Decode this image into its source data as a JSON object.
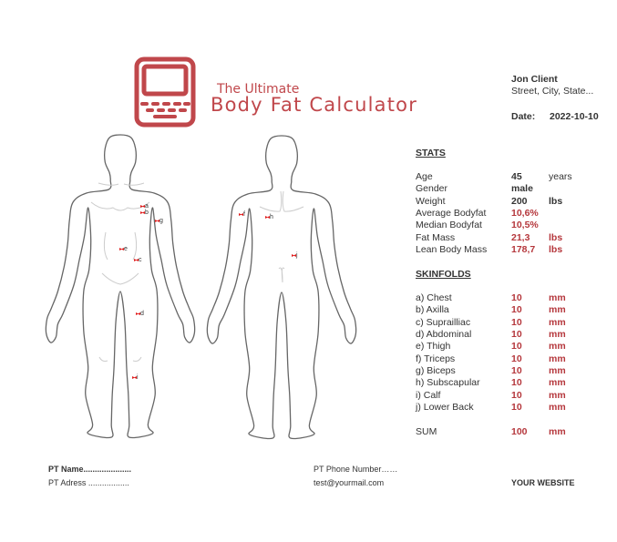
{
  "logo": {
    "line1": "The Ultimate",
    "line2": "Body Fat Calculator",
    "icon": "laptop-icon",
    "color": "#c0474b"
  },
  "client": {
    "name": "Jon Client",
    "address": "Street, City, State...",
    "date_label": "Date:",
    "date": "2022-10-10"
  },
  "stats": {
    "title": "STATS",
    "rows": [
      {
        "label": "Age",
        "value": "45",
        "unit": "years",
        "highlight": false
      },
      {
        "label": "Gender",
        "value": "male",
        "unit": "",
        "highlight": false
      },
      {
        "label": "Weight",
        "value": "200",
        "unit": "lbs",
        "highlight": false
      },
      {
        "label": "Average Bodyfat",
        "value": "10,6%",
        "unit": "",
        "highlight": true
      },
      {
        "label": "Median Bodyfat",
        "value": "10,5%",
        "unit": "",
        "highlight": true
      },
      {
        "label": "Fat Mass",
        "value": "21,3",
        "unit": "lbs",
        "highlight": true
      },
      {
        "label": "Lean Body Mass",
        "value": "178,7",
        "unit": "lbs",
        "highlight": true
      }
    ]
  },
  "skinfolds": {
    "title": "SKINFOLDS",
    "rows": [
      {
        "label": "a) Chest",
        "value": "10",
        "unit": "mm"
      },
      {
        "label": "b) Axilla",
        "value": "10",
        "unit": "mm"
      },
      {
        "label": "c) Suprailliac",
        "value": "10",
        "unit": "mm"
      },
      {
        "label": "d) Abdominal",
        "value": "10",
        "unit": "mm"
      },
      {
        "label": "e) Thigh",
        "value": "10",
        "unit": "mm"
      },
      {
        "label": "f) Triceps",
        "value": "10",
        "unit": "mm"
      },
      {
        "label": "g) Biceps",
        "value": "10",
        "unit": "mm"
      },
      {
        "label": "h) Subscapular",
        "value": "10",
        "unit": "mm"
      },
      {
        "label": "i) Calf",
        "value": "10",
        "unit": "mm"
      },
      {
        "label": "j) Lower Back",
        "value": "10",
        "unit": "mm"
      }
    ],
    "sum": {
      "label": "SUM",
      "value": "100",
      "unit": "mm"
    }
  },
  "body_markers": {
    "front": [
      "a",
      "b",
      "g",
      "e",
      "c",
      "d",
      "i"
    ],
    "back": [
      "f",
      "h",
      "j"
    ],
    "marker_color": "#e01a1a"
  },
  "footer": {
    "pt_name": "PT Name.....................",
    "pt_address": "PT Adress ..................",
    "pt_phone": "PT Phone Number……",
    "email": "test@yourmail.com",
    "website": "YOUR WEBSITE"
  }
}
